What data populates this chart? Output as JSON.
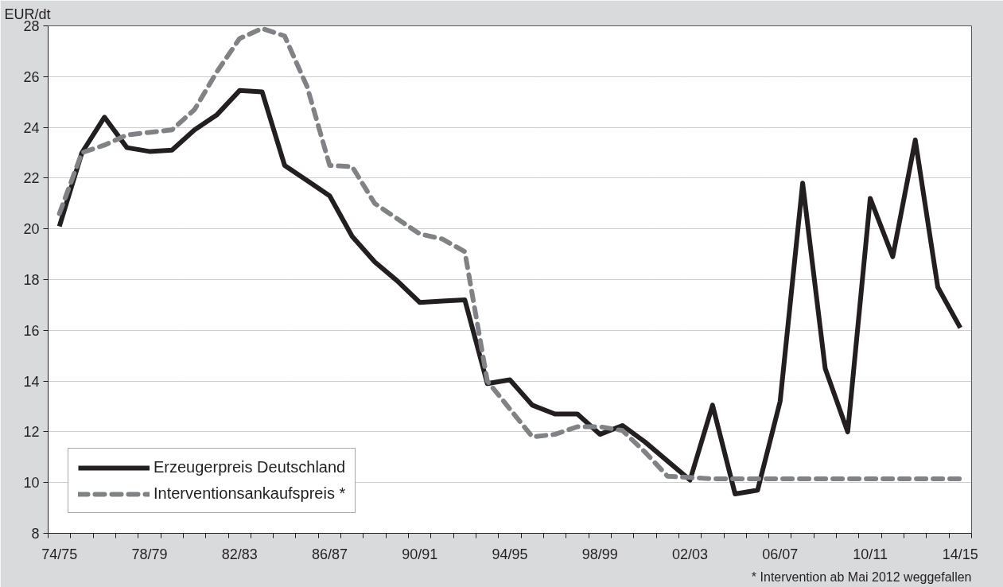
{
  "chart_data": {
    "type": "line",
    "ylabel": "EUR/dt",
    "categories": [
      "74/75",
      null,
      null,
      null,
      "78/79",
      null,
      null,
      null,
      "82/83",
      null,
      null,
      null,
      "86/87",
      null,
      null,
      null,
      "90/91",
      null,
      null,
      null,
      "94/95",
      null,
      null,
      null,
      "98/99",
      null,
      null,
      null,
      "02/03",
      null,
      null,
      null,
      "06/07",
      null,
      null,
      null,
      "10/11",
      null,
      null,
      null,
      "14/15"
    ],
    "series": [
      {
        "name": "Erzeugerpreis Deutschland",
        "color": "#231f20",
        "line_style": "solid",
        "values": [
          20.1,
          23.0,
          24.4,
          23.2,
          23.05,
          23.1,
          23.9,
          24.5,
          25.45,
          25.4,
          22.5,
          21.9,
          21.3,
          19.7,
          18.7,
          17.95,
          17.1,
          17.15,
          17.2,
          13.9,
          14.05,
          13.05,
          12.7,
          12.7,
          11.9,
          12.25,
          11.6,
          10.85,
          10.1,
          13.05,
          9.55,
          9.7,
          13.2,
          21.8,
          14.5,
          12.0,
          21.2,
          18.9,
          23.5,
          17.7,
          16.1
        ]
      },
      {
        "name": "Interventionsankaufspreis *",
        "color": "#808285",
        "line_style": "dashed",
        "values": [
          20.6,
          23.0,
          23.3,
          23.7,
          23.8,
          23.9,
          24.7,
          26.2,
          27.5,
          27.9,
          27.6,
          25.6,
          22.5,
          22.45,
          21.0,
          20.4,
          19.8,
          19.6,
          19.1,
          14.0,
          12.9,
          11.8,
          11.9,
          12.2,
          12.2,
          12.05,
          11.2,
          10.25,
          10.2,
          10.15,
          10.15,
          10.15,
          10.15,
          10.15,
          10.15,
          10.15,
          10.15,
          10.15,
          10.15,
          10.15,
          10.15
        ]
      }
    ],
    "ylim": [
      8,
      28
    ],
    "yticks": [
      8,
      10,
      12,
      14,
      16,
      18,
      20,
      22,
      24,
      26,
      28
    ],
    "grid": "y",
    "legend": "bottom left",
    "annotations": [
      "* Intervention ab Mai 2012 weggefallen"
    ]
  }
}
